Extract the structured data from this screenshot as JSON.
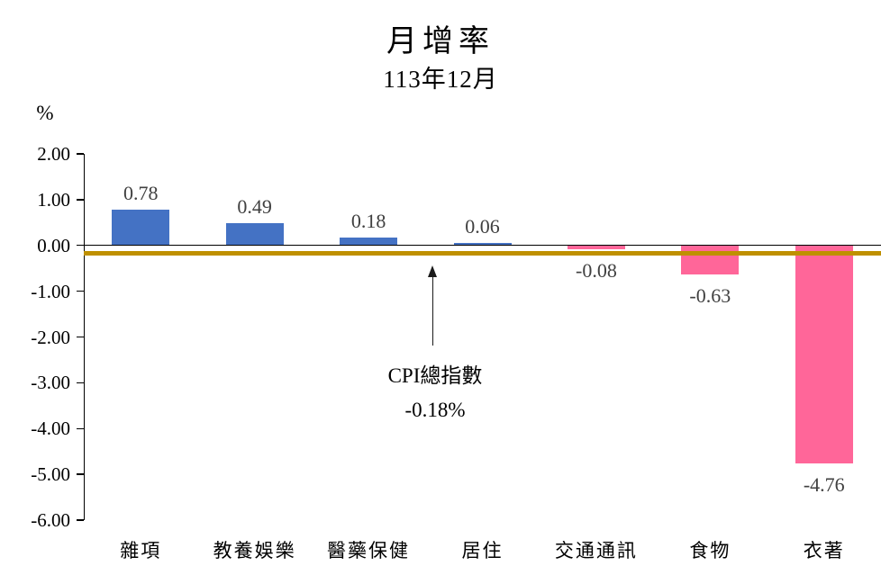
{
  "colors": {
    "positive_bar": "#4472C4",
    "negative_bar": "#FF6699",
    "reference_line": "#BF9000",
    "axis": "#000000",
    "value_label": "#404040"
  },
  "chart_data": {
    "type": "bar",
    "title": "月增率",
    "subtitle": "113年12月",
    "ylabel": "%",
    "categories": [
      "雜項",
      "教養娛樂",
      "醫藥保健",
      "居住",
      "交通通訊",
      "食物",
      "衣著"
    ],
    "values": [
      0.78,
      0.49,
      0.18,
      0.06,
      -0.08,
      -0.63,
      -4.76
    ],
    "value_labels": [
      "0.78",
      "0.49",
      "0.18",
      "0.06",
      "-0.08",
      "-0.63",
      "-4.76"
    ],
    "ylim": [
      -6,
      2
    ],
    "ytick_step": 1,
    "ytick_labels": [
      "2.00",
      "1.00",
      "0.00",
      "-1.00",
      "-2.00",
      "-3.00",
      "-4.00",
      "-5.00",
      "-6.00"
    ],
    "grid": false,
    "legend": false,
    "reference_line": {
      "value": -0.18,
      "label": "CPI總指數",
      "display": "-0.18%"
    }
  }
}
